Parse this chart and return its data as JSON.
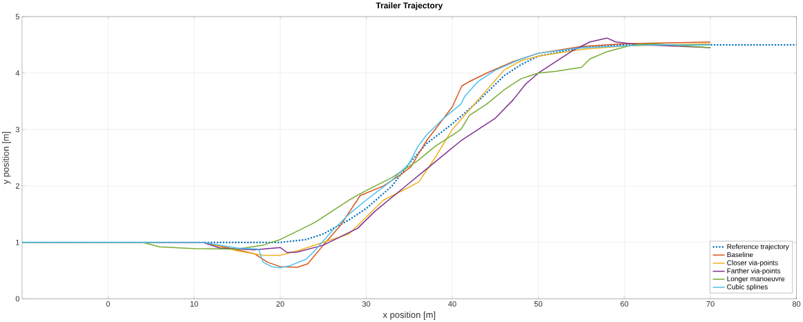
{
  "chart_data": {
    "type": "line",
    "title": "Trailer Trajectory",
    "xlabel": "x position [m]",
    "ylabel": "y position [m]",
    "xlim": [
      -10,
      80
    ],
    "ylim": [
      0,
      5
    ],
    "xticks": [
      0,
      10,
      20,
      30,
      40,
      50,
      60,
      70,
      80
    ],
    "yticks": [
      0,
      1,
      2,
      3,
      4,
      5
    ],
    "grid": true,
    "legend": "bottom right",
    "series": [
      {
        "name": "Reference trajectory",
        "color": "#0072bd",
        "line_style": "dotted",
        "x": [
          -10,
          11,
          20,
          23,
          25,
          28,
          30,
          33,
          35,
          37,
          40,
          43,
          46,
          48,
          50,
          55,
          60,
          80
        ],
        "values": [
          1,
          1,
          1.0,
          1.05,
          1.15,
          1.4,
          1.6,
          2.0,
          2.4,
          2.75,
          3.1,
          3.5,
          3.95,
          4.15,
          4.3,
          4.45,
          4.5,
          4.5
        ]
      },
      {
        "name": "Baseline",
        "color": "#d95319",
        "x": [
          -10,
          11,
          15,
          17,
          18.5,
          20,
          22,
          23.2,
          25,
          27,
          29.3,
          32,
          34,
          35.2,
          36,
          37,
          40,
          41.1,
          42,
          44,
          47,
          50,
          55,
          60,
          70
        ],
        "values": [
          1,
          1,
          0.87,
          0.8,
          0.65,
          0.57,
          0.56,
          0.62,
          0.95,
          1.3,
          1.83,
          2.0,
          2.2,
          2.34,
          2.55,
          2.8,
          3.4,
          3.77,
          3.85,
          4.0,
          4.2,
          4.35,
          4.47,
          4.52,
          4.55
        ]
      },
      {
        "name": "Closer via-points",
        "color": "#edb120",
        "x": [
          -10,
          11,
          15,
          18,
          20,
          22,
          24,
          26,
          28,
          30,
          32,
          34,
          36.1,
          38,
          40,
          42,
          44,
          46,
          48,
          50,
          55,
          60,
          70
        ],
        "values": [
          1,
          1,
          0.85,
          0.77,
          0.77,
          0.85,
          0.95,
          1.05,
          1.15,
          1.45,
          1.75,
          1.9,
          2.07,
          2.5,
          3.0,
          3.35,
          3.7,
          4.05,
          4.22,
          4.3,
          4.42,
          4.48,
          4.52
        ]
      },
      {
        "name": "Farther via-points",
        "color": "#7e2f8e",
        "x": [
          -10,
          11,
          13,
          17,
          20,
          20.8,
          22,
          25,
          27,
          29,
          31,
          33,
          35,
          37,
          39,
          41,
          43,
          45,
          47.1,
          48.5,
          50,
          52,
          54,
          56,
          58,
          59,
          62,
          70
        ],
        "values": [
          1,
          1,
          0.9,
          0.87,
          0.91,
          0.82,
          0.83,
          0.95,
          1.1,
          1.25,
          1.55,
          1.8,
          2.05,
          2.3,
          2.55,
          2.8,
          3.0,
          3.2,
          3.53,
          3.8,
          4.0,
          4.2,
          4.4,
          4.55,
          4.62,
          4.55,
          4.5,
          4.45
        ]
      },
      {
        "name": "Longer manoeuvre",
        "color": "#77ac30",
        "x": [
          -10,
          4,
          6,
          10,
          15,
          18,
          20,
          22,
          24,
          26,
          28,
          30,
          33,
          36,
          38,
          40,
          41,
          42,
          44,
          46,
          48,
          50,
          52,
          55,
          56,
          58,
          61,
          63,
          70
        ],
        "values": [
          1,
          1,
          0.92,
          0.89,
          0.88,
          0.95,
          1.05,
          1.2,
          1.35,
          1.55,
          1.75,
          1.92,
          2.15,
          2.45,
          2.7,
          2.9,
          3.0,
          3.25,
          3.45,
          3.7,
          3.9,
          4.0,
          4.03,
          4.1,
          4.25,
          4.38,
          4.5,
          4.52,
          4.45
        ]
      },
      {
        "name": "Cubic splines",
        "color": "#4dbeee",
        "x": [
          -10,
          11,
          15,
          17.5,
          18,
          19,
          20,
          21,
          23,
          24,
          26,
          28,
          30,
          33,
          35,
          36,
          37,
          39,
          41,
          41.5,
          43,
          45,
          48,
          50,
          55,
          60,
          63,
          70
        ],
        "values": [
          1,
          1,
          0.9,
          0.88,
          0.65,
          0.57,
          0.55,
          0.58,
          0.7,
          0.85,
          1.2,
          1.5,
          1.75,
          2.1,
          2.4,
          2.7,
          2.9,
          3.2,
          3.45,
          3.6,
          3.85,
          4.05,
          4.25,
          4.35,
          4.45,
          4.48,
          4.5,
          4.5
        ]
      }
    ]
  }
}
